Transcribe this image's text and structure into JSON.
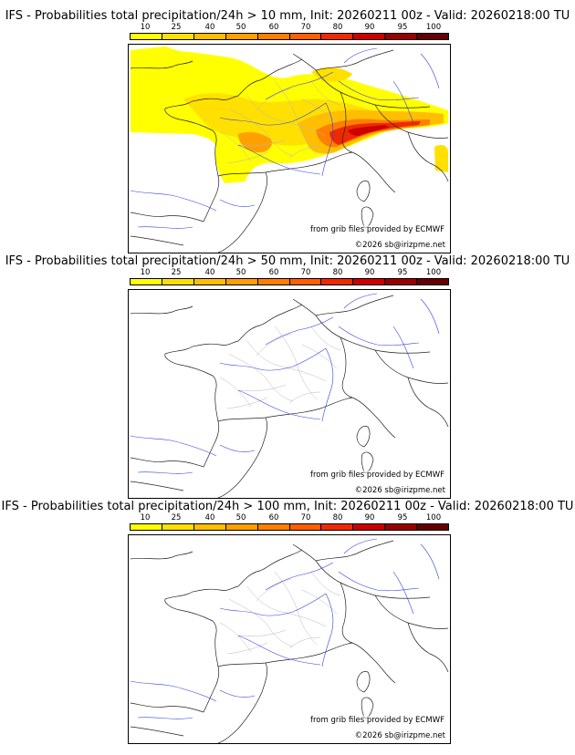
{
  "colors": {
    "scale": [
      "#ffff00",
      "#ffe000",
      "#ffbf00",
      "#ff9f00",
      "#ff7f00",
      "#ff5f00",
      "#ee2a00",
      "#cc0000",
      "#990000",
      "#660000"
    ],
    "coast": "#222222",
    "rivers": "#3340e0",
    "regions": "#b8b8b8"
  },
  "scale_labels": [
    "10",
    "25",
    "40",
    "50",
    "60",
    "70",
    "80",
    "90",
    "95",
    "100"
  ],
  "panels": [
    {
      "title": "IFS - Probabilities total precipitation/24h > 10 mm, Init: 20260211 00z - Valid: 20260218:00 TU",
      "credit_grib": "from grib files provided by ECMWF",
      "credit_copyright": "©2026 sb@irizpme.net",
      "precip_field": "present"
    },
    {
      "title": "IFS - Probabilities total precipitation/24h > 50 mm, Init: 20260211 00z - Valid: 20260218:00 TU",
      "credit_grib": "from grib files provided by ECMWF",
      "credit_copyright": "©2026 sb@irizpme.net",
      "precip_field": "none"
    },
    {
      "title": "IFS - Probabilities total precipitation/24h > 100 mm, Init: 20260211 00z - Valid: 20260218:00 TU",
      "credit_grib": "from grib files provided by ECMWF",
      "credit_copyright": "©2026 sb@irizpme.net",
      "precip_field": "none"
    }
  ]
}
